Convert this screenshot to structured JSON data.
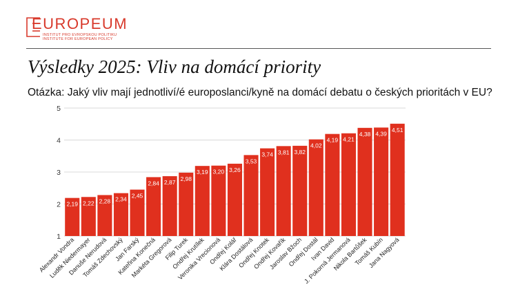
{
  "logo": {
    "name": "EUROPEUM",
    "line1": "Institut pro evropskou politiku",
    "line2": "Institute for European Policy"
  },
  "title": "Výsledky 2025: Vliv na domácí priority",
  "question": "Otázka: Jaký vliv mají jednotliví/é europoslanci/kyně na domácí debatu o českých prioritách v EU?",
  "colors": {
    "bar": "#e0301e",
    "brand": "#d8392b",
    "grid": "#d9d9d9"
  },
  "chart_data": {
    "type": "bar",
    "title": "Výsledky 2025: Vliv na domácí priority",
    "xlabel": "",
    "ylabel": "",
    "ylim": [
      1,
      5
    ],
    "yticks": [
      "1",
      "2",
      "3",
      "4",
      "5"
    ],
    "grid": true,
    "categories": [
      "Alexandr Vondra",
      "Luděk Niedermayer",
      "Danuše Nerudová",
      "Tomáš Zdechovský",
      "Jan Farský",
      "Kateřina Konečná",
      "Markéta Gregorová",
      "Filip Turek",
      "Ondřej Krutílek",
      "Veronika Vrecionová",
      "Ondřej Kolář",
      "Klára Dostálová",
      "Ondřej Knotek",
      "Ondřej Kovařík",
      "Jaroslav Bžoch",
      "Ondřej Dostál",
      "Ivan David",
      "J. Pokorná Jermanová",
      "Nikola Bartůšek",
      "Tomáš Kubín",
      "Jana Nagyová"
    ],
    "values": [
      2.19,
      2.22,
      2.28,
      2.34,
      2.45,
      2.84,
      2.87,
      2.98,
      3.19,
      3.2,
      3.26,
      3.53,
      3.74,
      3.81,
      3.82,
      4.02,
      4.19,
      4.21,
      4.38,
      4.39,
      4.51
    ],
    "labels": [
      "2,19",
      "2,22",
      "2,28",
      "2,34",
      "2,45",
      "2,84",
      "2,87",
      "2,98",
      "3,19",
      "3,20",
      "3,26",
      "3,53",
      "3,74",
      "3,81",
      "3,82",
      "4,02",
      "4,19",
      "4,21",
      "4,38",
      "4,39",
      "4,51"
    ]
  }
}
